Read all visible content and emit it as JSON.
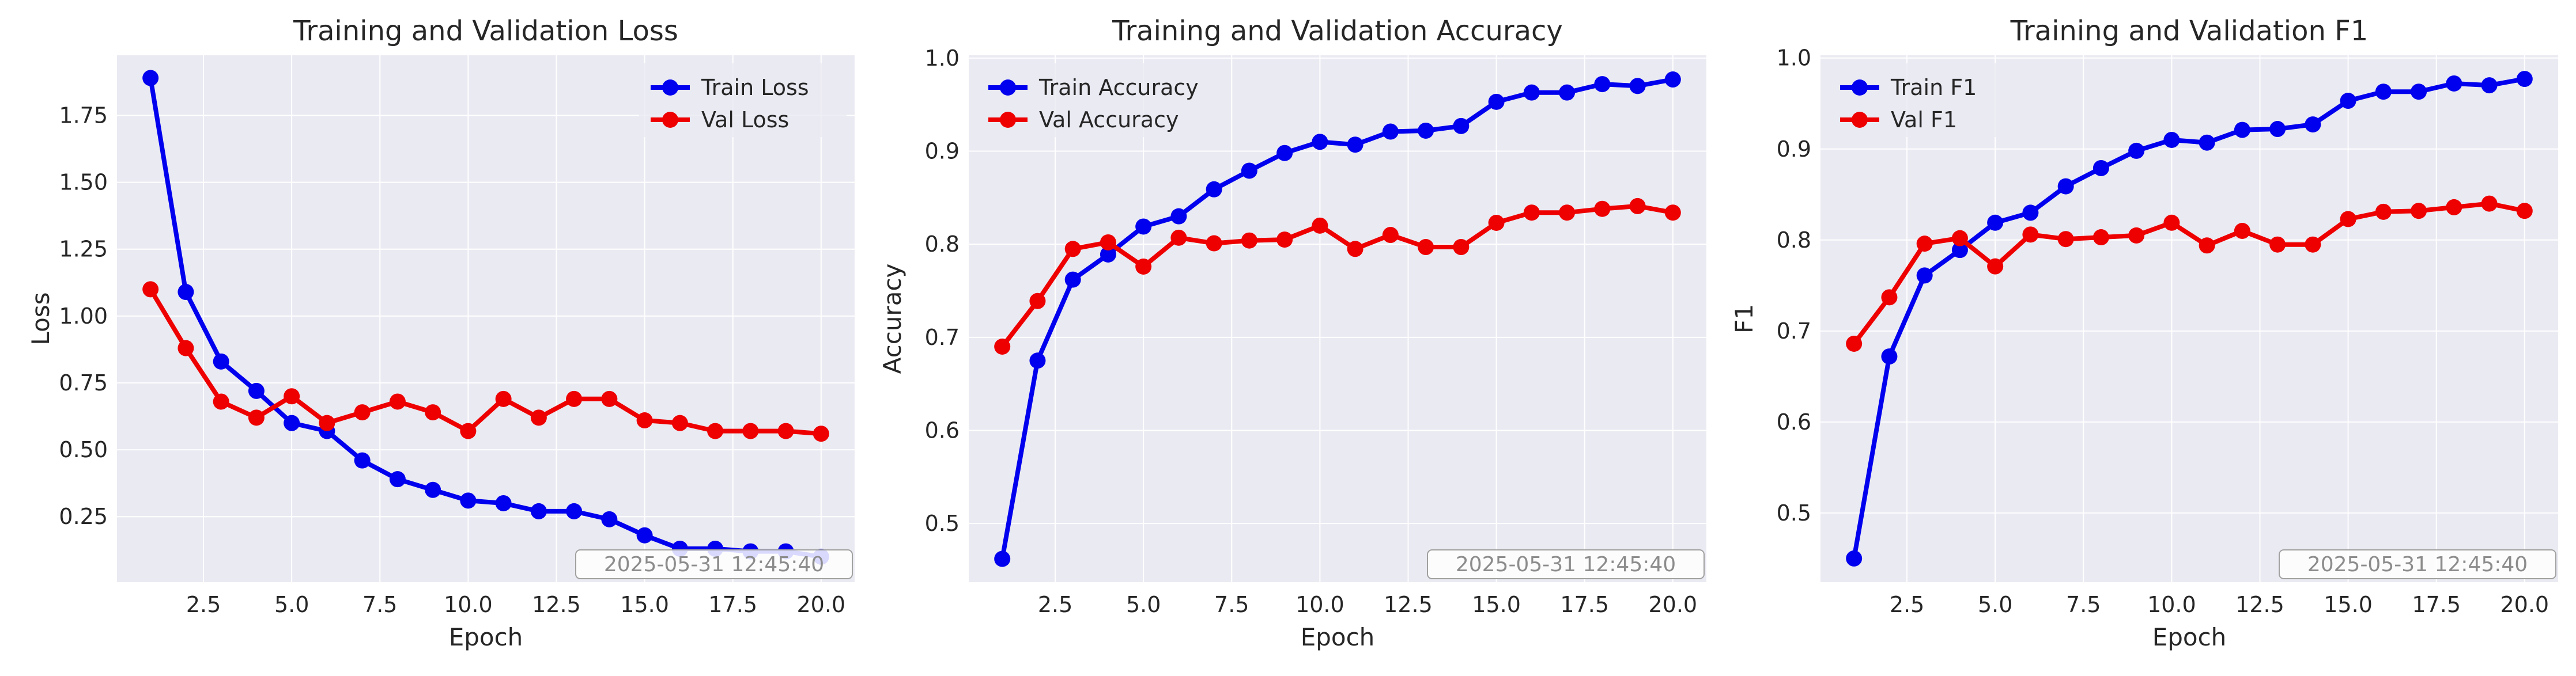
{
  "colors": {
    "train": "#0000ee",
    "val": "#ee0000",
    "axes_bg": "#eaeaf2",
    "grid": "#ffffff"
  },
  "timestamp": "2025-05-31 12:45:40",
  "chart_data": [
    {
      "type": "line",
      "title": "Training and Validation Loss",
      "xlabel": "Epoch",
      "ylabel": "Loss",
      "x": [
        1,
        2,
        3,
        4,
        5,
        6,
        7,
        8,
        9,
        10,
        11,
        12,
        13,
        14,
        15,
        16,
        17,
        18,
        19,
        20
      ],
      "xlim": [
        0.05,
        20.95
      ],
      "ylim": [
        0.005,
        1.975
      ],
      "xticks": [
        2.5,
        5.0,
        7.5,
        10.0,
        12.5,
        15.0,
        17.5,
        20.0
      ],
      "xtick_labels": [
        "2.5",
        "5.0",
        "7.5",
        "10.0",
        "12.5",
        "15.0",
        "17.5",
        "20.0"
      ],
      "yticks": [
        0.25,
        0.5,
        0.75,
        1.0,
        1.25,
        1.5,
        1.75
      ],
      "ytick_labels": [
        "0.25",
        "0.50",
        "0.75",
        "1.00",
        "1.25",
        "1.50",
        "1.75"
      ],
      "grid": true,
      "legend_position": "top-right",
      "series": [
        {
          "name": "Train Loss",
          "values": [
            1.89,
            1.09,
            0.83,
            0.72,
            0.6,
            0.57,
            0.46,
            0.39,
            0.35,
            0.31,
            0.3,
            0.27,
            0.27,
            0.24,
            0.18,
            0.13,
            0.13,
            0.12,
            0.12,
            0.1
          ]
        },
        {
          "name": "Val Loss",
          "values": [
            1.1,
            0.88,
            0.68,
            0.62,
            0.7,
            0.6,
            0.64,
            0.68,
            0.64,
            0.57,
            0.69,
            0.62,
            0.69,
            0.69,
            0.61,
            0.6,
            0.57,
            0.57,
            0.57,
            0.56
          ]
        }
      ]
    },
    {
      "type": "line",
      "title": "Training and Validation Accuracy",
      "xlabel": "Epoch",
      "ylabel": "Accuracy",
      "x": [
        1,
        2,
        3,
        4,
        5,
        6,
        7,
        8,
        9,
        10,
        11,
        12,
        13,
        14,
        15,
        16,
        17,
        18,
        19,
        20
      ],
      "xlim": [
        0.05,
        20.95
      ],
      "ylim": [
        0.437,
        1.003
      ],
      "xticks": [
        2.5,
        5.0,
        7.5,
        10.0,
        12.5,
        15.0,
        17.5,
        20.0
      ],
      "xtick_labels": [
        "2.5",
        "5.0",
        "7.5",
        "10.0",
        "12.5",
        "15.0",
        "17.5",
        "20.0"
      ],
      "yticks": [
        0.5,
        0.6,
        0.7,
        0.8,
        0.9,
        1.0
      ],
      "ytick_labels": [
        "0.5",
        "0.6",
        "0.7",
        "0.8",
        "0.9",
        "1.0"
      ],
      "grid": true,
      "legend_position": "top-left",
      "series": [
        {
          "name": "Train Accuracy",
          "values": [
            0.462,
            0.675,
            0.762,
            0.789,
            0.819,
            0.83,
            0.859,
            0.879,
            0.898,
            0.91,
            0.907,
            0.921,
            0.922,
            0.927,
            0.953,
            0.963,
            0.963,
            0.972,
            0.97,
            0.977
          ]
        },
        {
          "name": "Val Accuracy",
          "values": [
            0.69,
            0.739,
            0.795,
            0.802,
            0.776,
            0.807,
            0.801,
            0.804,
            0.805,
            0.82,
            0.795,
            0.81,
            0.797,
            0.797,
            0.823,
            0.834,
            0.834,
            0.838,
            0.841,
            0.834
          ]
        }
      ]
    },
    {
      "type": "line",
      "title": "Training and Validation F1",
      "xlabel": "Epoch",
      "ylabel": "F1",
      "x": [
        1,
        2,
        3,
        4,
        5,
        6,
        7,
        8,
        9,
        10,
        11,
        12,
        13,
        14,
        15,
        16,
        17,
        18,
        19,
        20
      ],
      "xlim": [
        0.05,
        20.95
      ],
      "ylim": [
        0.424,
        1.003
      ],
      "xticks": [
        2.5,
        5.0,
        7.5,
        10.0,
        12.5,
        15.0,
        17.5,
        20.0
      ],
      "xtick_labels": [
        "2.5",
        "5.0",
        "7.5",
        "10.0",
        "12.5",
        "15.0",
        "17.5",
        "20.0"
      ],
      "yticks": [
        0.5,
        0.6,
        0.7,
        0.8,
        0.9,
        1.0
      ],
      "ytick_labels": [
        "0.5",
        "0.6",
        "0.7",
        "0.8",
        "0.9",
        "1.0"
      ],
      "grid": true,
      "legend_position": "top-left",
      "series": [
        {
          "name": "Train F1",
          "values": [
            0.45,
            0.672,
            0.761,
            0.789,
            0.819,
            0.83,
            0.859,
            0.879,
            0.898,
            0.91,
            0.907,
            0.921,
            0.922,
            0.927,
            0.953,
            0.963,
            0.963,
            0.972,
            0.97,
            0.977
          ]
        },
        {
          "name": "Val F1",
          "values": [
            0.686,
            0.737,
            0.796,
            0.802,
            0.771,
            0.806,
            0.801,
            0.803,
            0.805,
            0.819,
            0.794,
            0.81,
            0.795,
            0.795,
            0.823,
            0.831,
            0.832,
            0.836,
            0.84,
            0.832
          ]
        }
      ]
    }
  ]
}
